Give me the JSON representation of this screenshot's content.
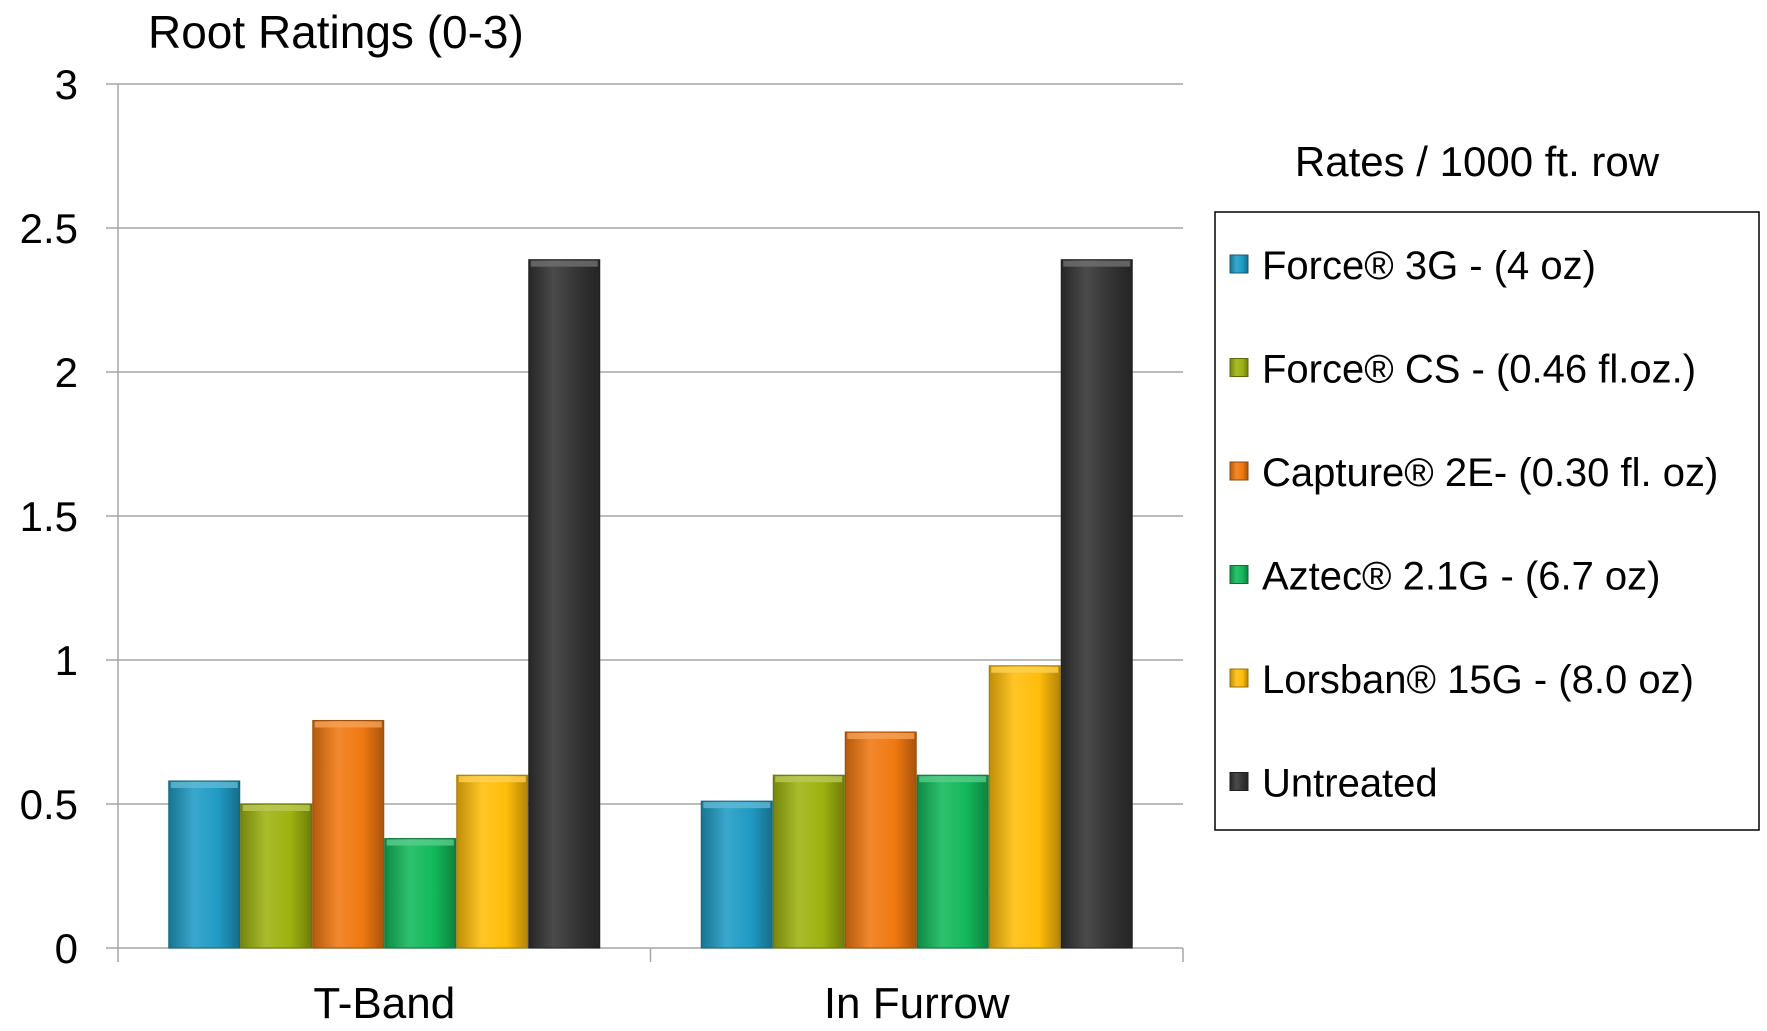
{
  "chart_data": {
    "type": "bar",
    "title": "Root Ratings (0-3)",
    "xlabel": "",
    "ylabel": "",
    "categories": [
      "T-Band",
      "In Furrow"
    ],
    "ylim": [
      0,
      3
    ],
    "yticks": [
      "0",
      "0.5",
      "1",
      "1.5",
      "2",
      "2.5",
      "3"
    ],
    "ytick_values": [
      0,
      0.5,
      1,
      1.5,
      2,
      2.5,
      3
    ],
    "grid": true,
    "legend": {
      "title": "Rates / 1000 ft. row",
      "position": "right"
    },
    "series": [
      {
        "name": "Force® 3G - (4 oz)",
        "color": "#1f9bc4",
        "values": [
          0.58,
          0.51
        ]
      },
      {
        "name": "Force® CS - (0.46 fl.oz.)",
        "color": "#9db20f",
        "values": [
          0.5,
          0.6
        ]
      },
      {
        "name": "Capture® 2E- (0.30 fl. oz)",
        "color": "#f07810",
        "values": [
          0.79,
          0.75
        ]
      },
      {
        "name": "Aztec® 2.1G - (6.7 oz)",
        "color": "#12b85a",
        "values": [
          0.38,
          0.6
        ]
      },
      {
        "name": "Lorsban® 15G - (8.0 oz)",
        "color": "#ffbd0a",
        "values": [
          0.6,
          0.98
        ]
      },
      {
        "name": "Untreated",
        "color": "#333333",
        "values": [
          2.39,
          2.39
        ]
      }
    ]
  }
}
